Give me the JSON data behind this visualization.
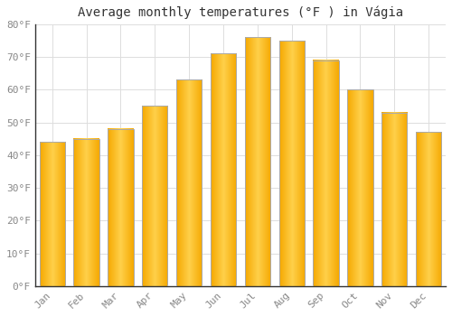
{
  "title": "Average monthly temperatures (°F ) in Vágia",
  "months": [
    "Jan",
    "Feb",
    "Mar",
    "Apr",
    "May",
    "Jun",
    "Jul",
    "Aug",
    "Sep",
    "Oct",
    "Nov",
    "Dec"
  ],
  "values": [
    44,
    45,
    48,
    55,
    63,
    71,
    76,
    75,
    69,
    60,
    53,
    47
  ],
  "bar_color_center": "#FFD04A",
  "bar_color_edge": "#F5A800",
  "ylim": [
    0,
    80
  ],
  "yticks": [
    0,
    10,
    20,
    30,
    40,
    50,
    60,
    70,
    80
  ],
  "ytick_labels": [
    "0°F",
    "10°F",
    "20°F",
    "30°F",
    "40°F",
    "50°F",
    "60°F",
    "70°F",
    "80°F"
  ],
  "background_color": "#FFFFFF",
  "grid_color": "#DDDDDD",
  "title_fontsize": 10,
  "tick_fontsize": 8,
  "tick_color": "#888888",
  "title_color": "#333333"
}
